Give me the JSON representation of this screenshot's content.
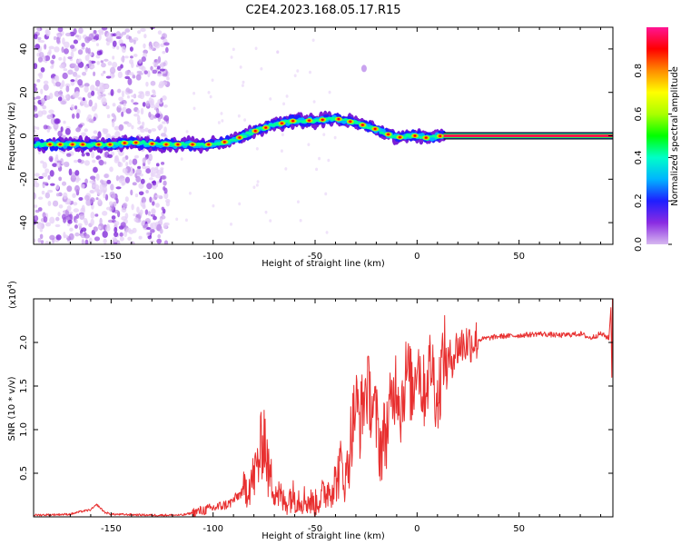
{
  "title": "C2E4.2023.168.05.17.R15",
  "colorbar": {
    "label": "Normalized spectral amplitude",
    "ticks": [
      "0.0",
      "0.2",
      "0.4",
      "0.6",
      "0.8"
    ],
    "tick_values": [
      0.0,
      0.2,
      0.4,
      0.6,
      0.8
    ],
    "range": [
      0,
      1
    ],
    "colors": [
      "#d7b8f0",
      "#8a2be2",
      "#1e1eff",
      "#00b4ff",
      "#00ffc8",
      "#00ff00",
      "#aaff00",
      "#ffff00",
      "#ff8c00",
      "#ff0000",
      "#ff1493"
    ]
  },
  "chart_data": [
    {
      "type": "heatmap",
      "title": "C2E4.2023.168.05.17.R15",
      "xlabel": "Height of straight line (km)",
      "ylabel": "Frequency (Hz)",
      "xlim": [
        -188,
        96
      ],
      "ylim": [
        -50,
        50
      ],
      "xticks": [
        -150,
        -100,
        -50,
        0,
        50
      ],
      "xtick_labels": [
        "-150",
        "-100",
        "-50",
        "0",
        "50"
      ],
      "yticks": [
        -40,
        -20,
        0,
        20,
        40
      ],
      "ytick_labels": [
        "-40",
        "-20",
        "0",
        "20",
        "40"
      ],
      "dominant_frequency_trace": {
        "x": [
          -188,
          -170,
          -150,
          -140,
          -125,
          -110,
          -100,
          -90,
          -80,
          -70,
          -60,
          -50,
          -40,
          -30,
          -20,
          -15,
          -10,
          -5,
          0,
          5,
          12,
          20,
          40,
          60,
          80,
          96
        ],
        "y": [
          -4,
          -4,
          -4,
          -3,
          -4,
          -4,
          -4,
          -2,
          2,
          5,
          7,
          7,
          8,
          6,
          3,
          1,
          -1,
          0,
          0,
          -1,
          0,
          0,
          0,
          0,
          0,
          0
        ]
      },
      "noise_regions_x": [
        [
          -188,
          -122
        ]
      ],
      "noise_blob": {
        "x": -26,
        "y": 31
      }
    },
    {
      "type": "line",
      "title": "",
      "xlabel": "Height of straight line (km)",
      "ylabel": "SNR (10 * v/v)",
      "y_multiplier": "(x10",
      "y_multiplier_exp": "4",
      "xlim": [
        -188,
        96
      ],
      "ylim": [
        0,
        2.5
      ],
      "xticks": [
        -150,
        -100,
        -50,
        0,
        50
      ],
      "xtick_labels": [
        "-150",
        "-100",
        "-50",
        "0",
        "50"
      ],
      "yticks": [
        0.5,
        1.0,
        1.5,
        2.0
      ],
      "ytick_labels": [
        "0.5",
        "1.0",
        "1.5",
        "2.0"
      ],
      "series": [
        {
          "name": "SNR",
          "color": "#e83030",
          "x": [
            -188,
            -170,
            -165,
            -160,
            -157,
            -153,
            -150,
            -130,
            -115,
            -100,
            -92,
            -85,
            -80,
            -77,
            -75,
            -73,
            -70,
            -65,
            -62,
            -55,
            -50,
            -45,
            -40,
            -37,
            -35,
            -32,
            -30,
            -28,
            -25,
            -22,
            -20,
            -18,
            -15,
            -10,
            -8,
            -5,
            -2,
            0,
            3,
            7,
            10,
            13,
            15,
            20,
            25,
            30,
            35,
            40,
            50,
            60,
            70,
            80,
            85,
            90,
            94,
            96
          ],
          "y": [
            0.02,
            0.03,
            0.06,
            0.08,
            0.14,
            0.05,
            0.03,
            0.02,
            0.02,
            0.1,
            0.15,
            0.3,
            0.45,
            0.7,
            1.0,
            0.5,
            0.35,
            0.15,
            0.25,
            0.2,
            0.15,
            0.28,
            0.4,
            0.6,
            0.4,
            1.0,
            1.3,
            1.1,
            1.5,
            1.3,
            1.1,
            0.8,
            1.0,
            1.6,
            1.25,
            1.7,
            1.4,
            1.9,
            1.4,
            1.8,
            1.3,
            1.9,
            1.75,
            1.95,
            2.0,
            2.03,
            2.05,
            2.07,
            2.08,
            2.1,
            2.08,
            2.1,
            2.05,
            2.1,
            2.05,
            2.1
          ]
        }
      ],
      "end_spike": {
        "x": 95,
        "y_max": 2.4,
        "y_min": 1.6
      }
    }
  ]
}
